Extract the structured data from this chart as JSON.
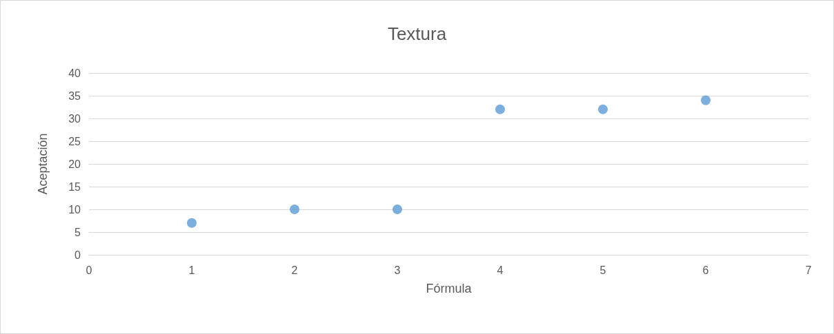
{
  "chart_data": {
    "type": "scatter",
    "title": "Textura",
    "xlabel": "Fórmula",
    "ylabel": "Aceptación",
    "x": [
      1,
      2,
      3,
      4,
      5,
      6
    ],
    "values": [
      7,
      10,
      10,
      32,
      32,
      34
    ],
    "color": "#5b9bd5",
    "xlim": [
      0,
      7
    ],
    "xticks": [
      0,
      1,
      2,
      3,
      4,
      5,
      6,
      7
    ],
    "ylim": [
      0,
      40
    ],
    "yticks": [
      0,
      5,
      10,
      15,
      20,
      25,
      30,
      35,
      40
    ],
    "grid": "y",
    "marker": "circle"
  }
}
